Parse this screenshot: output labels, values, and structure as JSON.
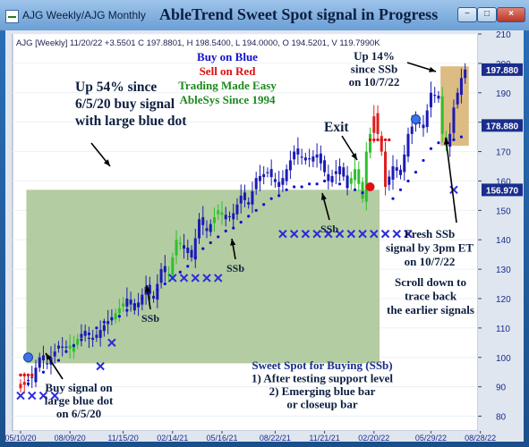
{
  "window": {
    "title": "AJG Weekly/AJG Monthly",
    "overlay_title": "AbleTrend Sweet Spot signal in Progress",
    "buttons": {
      "minimize": "−",
      "maximize": "□",
      "close": "×"
    }
  },
  "colors": {
    "up_bar": "#1a1ab4",
    "down_bar": "#1c8a1c",
    "green_bar": "#2ec02e",
    "red_bar": "#e01e1e",
    "blue_dot": "#1010d0",
    "red_dot": "#e01010",
    "zone_green": "#a6c390",
    "zone_tan": "#d8b574",
    "axis_badge": "#1a2d8c"
  },
  "chart_data": {
    "type": "candlestick",
    "info_line": "AJG [Weekly] 11/20/22 +3.5501 C 197.8801, H 198.5400, L 194.0000, O 194.5201, V 119.7990K",
    "y_range": [
      75,
      210
    ],
    "y_ticks": [
      80,
      90,
      100,
      110,
      120,
      130,
      140,
      150,
      160,
      170,
      180,
      190,
      200,
      210
    ],
    "x_ticks": [
      "05/10/20",
      "08/09/20",
      "11/15/20",
      "02/14/21",
      "05/16/21",
      "08/22/21",
      "11/21/21",
      "02/20/22",
      "05/29/22",
      "08/28/22"
    ],
    "x_tick_positions": [
      0,
      13,
      27,
      40,
      53,
      67,
      80,
      93,
      108,
      121
    ],
    "price_badges": [
      {
        "value": "197.880",
        "type": "last"
      },
      {
        "value": "178.880",
        "type": "level"
      },
      {
        "value": "156.970",
        "type": "level"
      }
    ],
    "close_path": [
      [
        0,
        91
      ],
      [
        3,
        93
      ],
      [
        5,
        100
      ],
      [
        7,
        98
      ],
      [
        10,
        104
      ],
      [
        13,
        103
      ],
      [
        16,
        108
      ],
      [
        19,
        106
      ],
      [
        22,
        111
      ],
      [
        25,
        115
      ],
      [
        28,
        120
      ],
      [
        30,
        116
      ],
      [
        33,
        124
      ],
      [
        35,
        120
      ],
      [
        37,
        130
      ],
      [
        39,
        128
      ],
      [
        41,
        140
      ],
      [
        43,
        137
      ],
      [
        45,
        134
      ],
      [
        47,
        147
      ],
      [
        49,
        143
      ],
      [
        52,
        150
      ],
      [
        54,
        147
      ],
      [
        56,
        149
      ],
      [
        58,
        155
      ],
      [
        60,
        152
      ],
      [
        62,
        161
      ],
      [
        65,
        163
      ],
      [
        68,
        158
      ],
      [
        70,
        164
      ],
      [
        72,
        170
      ],
      [
        75,
        167
      ],
      [
        78,
        169
      ],
      [
        81,
        160
      ],
      [
        84,
        165
      ],
      [
        86,
        158
      ],
      [
        88,
        164
      ],
      [
        90,
        154
      ],
      [
        91,
        170
      ],
      [
        93,
        182
      ],
      [
        95,
        170
      ],
      [
        96,
        158
      ],
      [
        98,
        165
      ],
      [
        100,
        162
      ],
      [
        102,
        176
      ],
      [
        104,
        181
      ],
      [
        106,
        178
      ],
      [
        108,
        190
      ],
      [
        110,
        188
      ],
      [
        111,
        176
      ],
      [
        112,
        172
      ],
      [
        113,
        176
      ],
      [
        114,
        185
      ],
      [
        115,
        190
      ],
      [
        116,
        195
      ],
      [
        117,
        197.88
      ]
    ],
    "color_segments": [
      {
        "start": 0,
        "end": 1,
        "color": "red"
      },
      {
        "start": 2,
        "end": 12,
        "color": "blue"
      },
      {
        "start": 13,
        "end": 15,
        "color": "green"
      },
      {
        "start": 16,
        "end": 24,
        "color": "blue"
      },
      {
        "start": 25,
        "end": 27,
        "color": "green"
      },
      {
        "start": 28,
        "end": 38,
        "color": "blue"
      },
      {
        "start": 39,
        "end": 42,
        "color": "green"
      },
      {
        "start": 43,
        "end": 50,
        "color": "blue"
      },
      {
        "start": 51,
        "end": 53,
        "color": "green"
      },
      {
        "start": 54,
        "end": 86,
        "color": "blue"
      },
      {
        "start": 87,
        "end": 92,
        "color": "green"
      },
      {
        "start": 93,
        "end": 96,
        "color": "red"
      },
      {
        "start": 97,
        "end": 110,
        "color": "blue"
      },
      {
        "start": 111,
        "end": 112,
        "color": "green"
      },
      {
        "start": 113,
        "end": 117,
        "color": "blue"
      }
    ],
    "support_dots": [
      [
        0,
        94
      ],
      [
        2,
        91
      ],
      [
        4,
        92
      ],
      [
        6,
        95
      ],
      [
        8,
        98
      ],
      [
        10,
        99
      ],
      [
        12,
        102
      ],
      [
        14,
        104
      ],
      [
        16,
        106
      ],
      [
        18,
        108
      ],
      [
        20,
        110
      ],
      [
        22,
        112
      ],
      [
        24,
        113
      ],
      [
        26,
        114
      ],
      [
        28,
        116
      ],
      [
        30,
        118
      ],
      [
        32,
        120
      ],
      [
        34,
        122
      ],
      [
        36,
        123
      ],
      [
        38,
        125
      ],
      [
        40,
        127
      ],
      [
        42,
        129
      ],
      [
        44,
        131
      ],
      [
        46,
        134
      ],
      [
        48,
        137
      ],
      [
        50,
        139
      ],
      [
        52,
        141
      ],
      [
        54,
        143
      ],
      [
        56,
        144
      ],
      [
        58,
        146
      ],
      [
        60,
        148
      ],
      [
        62,
        150
      ],
      [
        64,
        152
      ],
      [
        66,
        154
      ],
      [
        68,
        155
      ],
      [
        70,
        157
      ],
      [
        72,
        158
      ],
      [
        74,
        158
      ],
      [
        76,
        159
      ],
      [
        78,
        159
      ],
      [
        80,
        160
      ],
      [
        82,
        160
      ],
      [
        84,
        159
      ],
      [
        86,
        158
      ],
      [
        88,
        157
      ],
      [
        90,
        156
      ],
      [
        98,
        154
      ],
      [
        100,
        157
      ],
      [
        102,
        160
      ],
      [
        104,
        163
      ],
      [
        106,
        167
      ],
      [
        108,
        171
      ],
      [
        110,
        173
      ],
      [
        112,
        174
      ],
      [
        114,
        174
      ],
      [
        116,
        175
      ]
    ],
    "resistance_dots": [
      [
        0,
        94
      ],
      [
        1,
        94
      ],
      [
        2,
        94
      ],
      [
        3,
        94
      ],
      [
        92,
        174
      ],
      [
        93,
        174
      ],
      [
        94,
        174
      ],
      [
        95,
        174
      ],
      [
        96,
        174
      ],
      [
        97,
        174
      ]
    ],
    "ssb_x_groups": [
      {
        "start": 0,
        "end": 11,
        "value": 87
      },
      {
        "start": 21,
        "end": 23,
        "value": 97
      },
      {
        "start": 24,
        "end": 26,
        "value": 105
      },
      {
        "start": 40,
        "end": 52,
        "value": 127
      },
      {
        "start": 69,
        "end": 102,
        "value": 142
      },
      {
        "start": 114,
        "end": 115,
        "value": 157
      }
    ],
    "buy_dots": [
      {
        "index": 2,
        "value": 100,
        "color": "blue"
      },
      {
        "index": 104,
        "value": 181,
        "color": "blue"
      }
    ],
    "exit_dot": {
      "index": 92,
      "value": 158,
      "color": "red"
    },
    "zones": [
      {
        "start": 2,
        "end": 94,
        "low": 98,
        "high": 157,
        "color": "green"
      },
      {
        "start": 111,
        "end": 117.5,
        "low": 172,
        "high": 199,
        "color": "tan"
      }
    ],
    "annotations": {
      "up54": [
        "Up 54% since",
        "6/5/20 buy signal",
        "with large blue dot"
      ],
      "legend": [
        {
          "text": "Buy on Blue",
          "color": "#1010d0"
        },
        {
          "text": "Sell on Red",
          "color": "#e01010"
        },
        {
          "text": "Trading Made Easy",
          "color": "#1c8a1c"
        },
        {
          "text": "AbleSys Since 1994",
          "color": "#1c8a1c"
        }
      ],
      "up14": [
        "Up 14%",
        "since SSb",
        "on 10/7/22"
      ],
      "exit": "Exit",
      "ssb_labels": [
        "SSb",
        "SSb",
        "SSb"
      ],
      "fresh": [
        "Fresh SSb",
        "signal by 3pm ET",
        "on 10/7/22"
      ],
      "scroll": [
        "Scroll down to",
        "trace back",
        "the earlier signals"
      ],
      "buy_signal": [
        "Buy signal on",
        "large blue dot",
        "on 6/5/20"
      ],
      "sweet_spot": [
        "Sweet Spot for Buying (SSb)",
        "1) After testing support level",
        "2) Emerging blue bar",
        "or closeup bar"
      ]
    }
  }
}
